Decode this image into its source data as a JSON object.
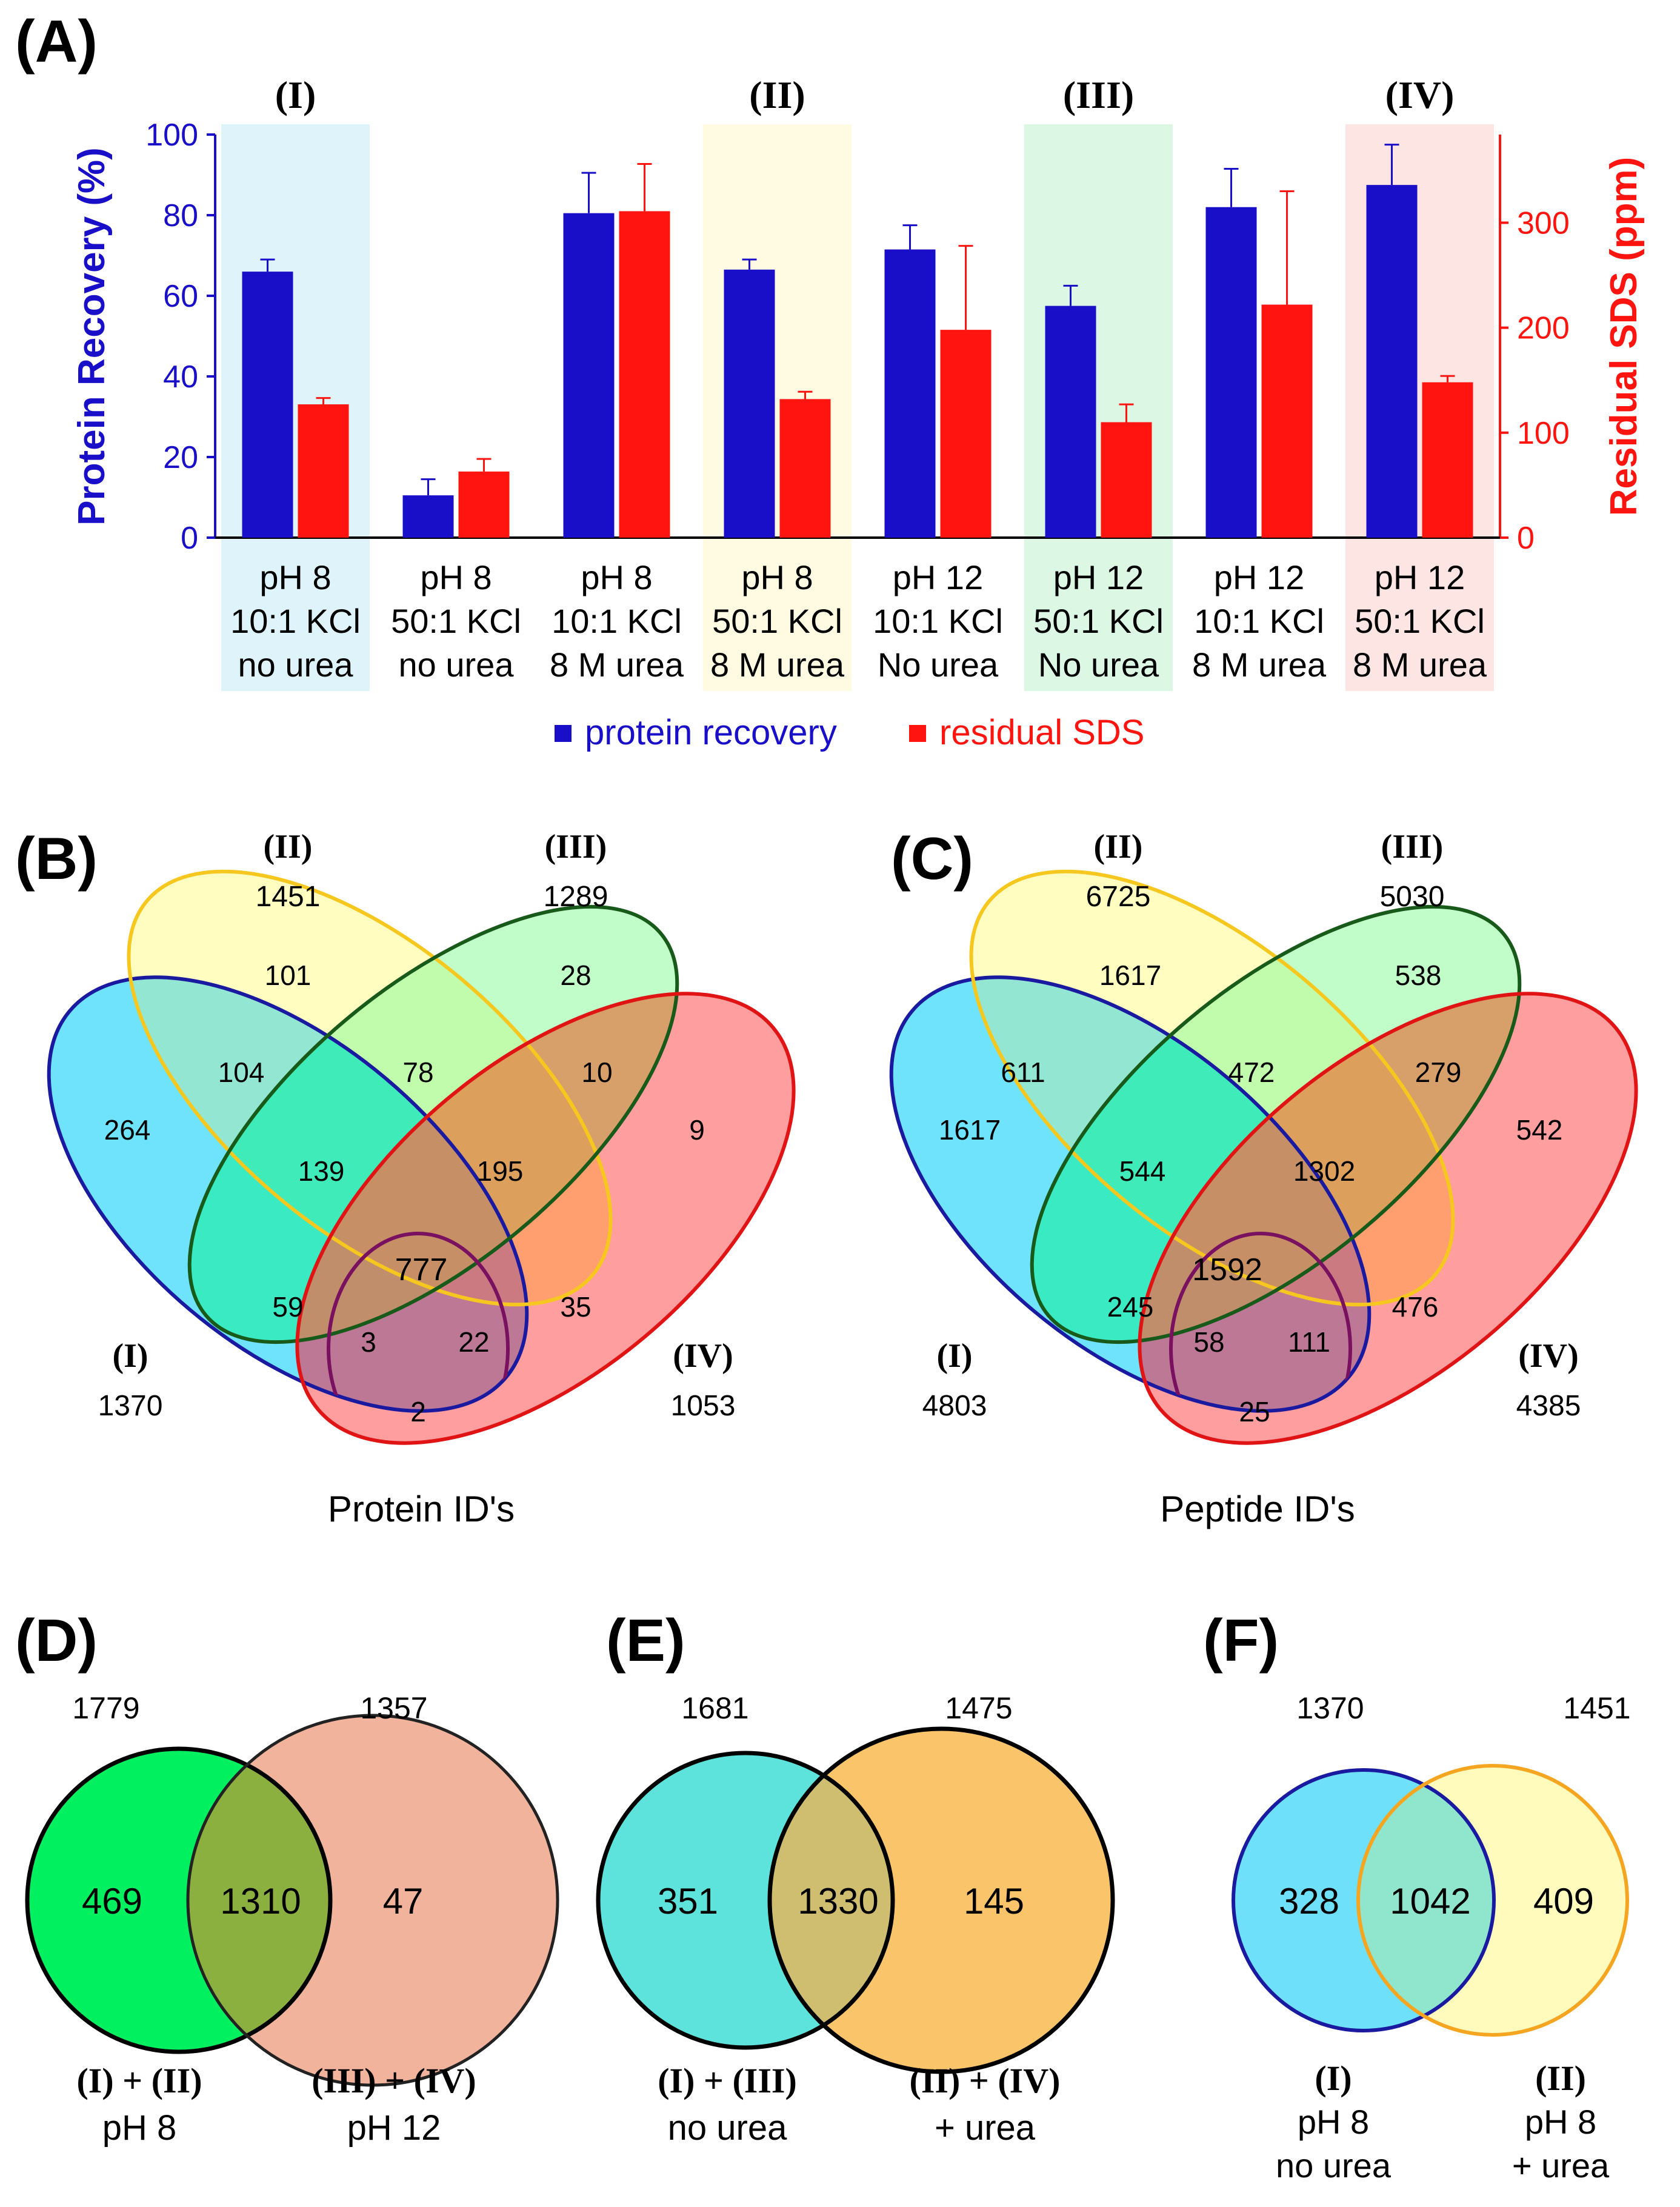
{
  "colors": {
    "recovery": "#1a0fc8",
    "sds": "#ff1410",
    "hl_I": "#dff3fa",
    "hl_II": "#fffbe3",
    "hl_III": "#dcf8e4",
    "hl_IV": "#fde5e3",
    "venn_I": "#6fe3fb",
    "venn_II": "#fffdbf",
    "venn_III": "#9bfbbf",
    "venn_IV": "#ff8e8e",
    "venn_I_stroke": "#1a1aa0",
    "venn_II_stroke": "#f6c81f",
    "venn_III_stroke": "#185a1a",
    "venn_IV_stroke": "#e01414",
    "d_left": "#00f060",
    "d_right": "#f1b39c",
    "e_left": "#5de3db",
    "e_right": "#f9c46a",
    "f_left": "#6fe0fa",
    "f_right": "#fffbbd"
  },
  "chart_data": [
    {
      "panel": "(A)",
      "type": "bar",
      "group_labels": [
        "(I)",
        "(II)",
        "(III)",
        "(IV)"
      ],
      "categories": [
        [
          "pH 8",
          "10:1 KCl",
          "no urea"
        ],
        [
          "pH 8",
          "50:1 KCl",
          "no urea"
        ],
        [
          "pH 8",
          "10:1 KCl",
          "8 M urea"
        ],
        [
          "pH 8",
          "50:1 KCl",
          "8 M urea"
        ],
        [
          "pH 12",
          "10:1 KCl",
          "No urea"
        ],
        [
          "pH 12",
          "50:1 KCl",
          "No urea"
        ],
        [
          "pH 12",
          "10:1 KCl",
          "8 M urea"
        ],
        [
          "pH 12",
          "50:1 KCl",
          "8 M urea"
        ]
      ],
      "series": [
        {
          "name": "protein recovery",
          "axis": "left",
          "values": [
            66,
            10.5,
            80.5,
            66.5,
            71.5,
            57.5,
            82,
            87.5
          ],
          "errors": [
            3,
            4,
            10,
            2.5,
            6,
            5,
            9.5,
            10
          ]
        },
        {
          "name": "residual SDS",
          "axis": "right",
          "values": [
            127,
            63,
            311,
            132,
            198,
            110,
            222,
            148
          ],
          "errors": [
            6,
            12,
            45,
            7,
            80,
            17,
            108,
            6
          ]
        }
      ],
      "ylabel": "Protein Recovery (%)",
      "ylabel2": "Residual SDS (ppm)",
      "ylim": [
        0,
        100
      ],
      "ylim2": [
        0,
        384
      ],
      "yticks": [
        "0",
        "20",
        "40",
        "60",
        "80",
        "100"
      ],
      "yticks2": [
        "0",
        "100",
        "200",
        "300"
      ],
      "highlighted_groups": [
        {
          "label": "(I)",
          "index": 0
        },
        {
          "label": "(II)",
          "index": 3
        },
        {
          "label": "(III)",
          "index": 5
        },
        {
          "label": "(IV)",
          "index": 7
        }
      ],
      "legend": [
        "protein recovery",
        "residual SDS"
      ],
      "legend_position": "bottom-center"
    },
    {
      "panel": "(B)",
      "type": "venn4",
      "title": "Protein ID's",
      "sets": [
        {
          "label": "(I)",
          "total": "1370"
        },
        {
          "label": "(II)",
          "total": "1451"
        },
        {
          "label": "(III)",
          "total": "1289"
        },
        {
          "label": "(IV)",
          "total": "1053"
        }
      ],
      "regions": {
        "I": "264",
        "II": "101",
        "III": "28",
        "IV": "9",
        "I_II": "104",
        "II_III": "78",
        "III_IV": "10",
        "I_II_III": "139",
        "II_III_IV": "195",
        "all": "777",
        "I_III": "59",
        "II_IV": "35",
        "I_III_IV": "3",
        "I_II_IV": "22",
        "I_IV": "2"
      }
    },
    {
      "panel": "(C)",
      "type": "venn4",
      "title": "Peptide ID's",
      "sets": [
        {
          "label": "(I)",
          "total": "4803"
        },
        {
          "label": "(II)",
          "total": "6725"
        },
        {
          "label": "(III)",
          "total": "5030"
        },
        {
          "label": "(IV)",
          "total": "4385"
        }
      ],
      "regions": {
        "I": "1617",
        "II": "1617",
        "III": "538",
        "IV": "542",
        "I_II": "611",
        "II_III": "472",
        "III_IV": "279",
        "I_II_III": "544",
        "II_III_IV": "1302",
        "all": "1592",
        "I_III": "245",
        "II_IV": "476",
        "I_III_IV": "58",
        "I_II_IV": "111",
        "I_IV": "25"
      }
    },
    {
      "panel": "(D)",
      "type": "venn2",
      "left_total": "1779",
      "right_total": "1357",
      "left_only": "469",
      "both": "1310",
      "right_only": "47",
      "left_label": [
        "(I) + (II)",
        "pH 8"
      ],
      "right_label": [
        "(III) + (IV)",
        "pH 12"
      ]
    },
    {
      "panel": "(E)",
      "type": "venn2",
      "left_total": "1681",
      "right_total": "1475",
      "left_only": "351",
      "both": "1330",
      "right_only": "145",
      "left_label": [
        "(I) + (III)",
        "no urea"
      ],
      "right_label": [
        "(II) + (IV)",
        "+ urea"
      ]
    },
    {
      "panel": "(F)",
      "type": "venn2",
      "left_total": "1370",
      "right_total": "1451",
      "left_only": "328",
      "both": "1042",
      "right_only": "409",
      "left_label": [
        "(I)",
        "pH 8",
        "no urea"
      ],
      "right_label": [
        "(II)",
        "pH 8",
        "+ urea"
      ]
    }
  ]
}
